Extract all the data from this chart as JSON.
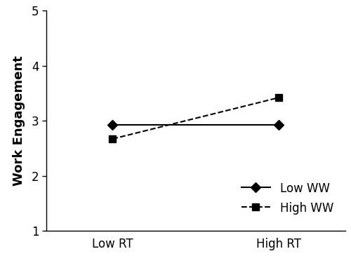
{
  "x_labels": [
    "Low RT",
    "High RT"
  ],
  "x_positions": [
    0,
    1
  ],
  "low_ww_values": [
    2.93,
    2.93
  ],
  "high_ww_values": [
    2.67,
    3.42
  ],
  "ylabel": "Work Engagement",
  "ylim": [
    1,
    5
  ],
  "yticks": [
    1,
    2,
    3,
    4,
    5
  ],
  "xlim": [
    -0.4,
    1.4
  ],
  "legend_labels": [
    "Low WW",
    "High WW"
  ],
  "line_color": "#000000",
  "background_color": "#ffffff",
  "marker_low": "D",
  "marker_high": "s",
  "markersize": 7,
  "linewidth": 1.5,
  "font_size": 12,
  "ylabel_fontsize": 13,
  "tick_fontsize": 12
}
